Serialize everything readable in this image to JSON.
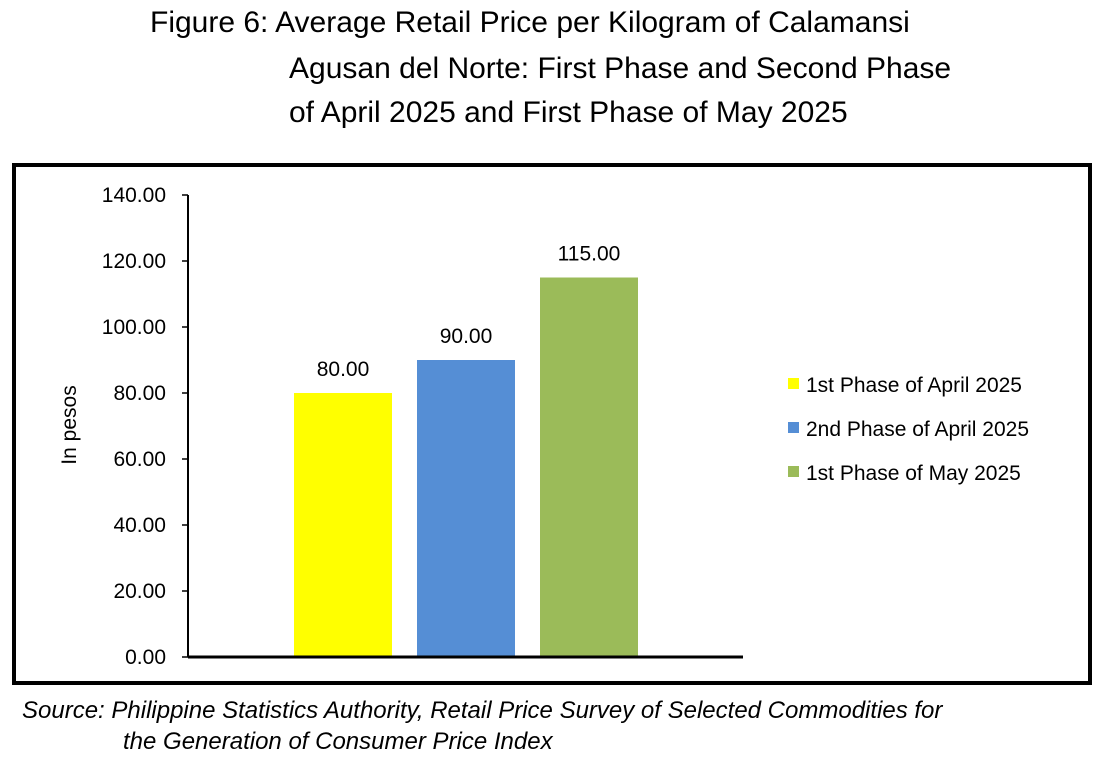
{
  "title_lines": [
    "Figure 6: Average Retail Price per Kilogram of Calamansi",
    "Agusan del Norte: First Phase and Second Phase",
    "of April 2025 and First Phase of May 2025"
  ],
  "source_lines": [
    "Source: Philippine Statistics Authority, Retail Price Survey of Selected Commodities for",
    "the Generation of Consumer Price Index"
  ],
  "chart_data": {
    "type": "bar",
    "ylabel": "In pesos",
    "ylim": [
      0,
      140
    ],
    "yticks": [
      0,
      20,
      40,
      60,
      80,
      100,
      120,
      140
    ],
    "ytick_labels": [
      "0.00",
      "20.00",
      "40.00",
      "60.00",
      "80.00",
      "100.00",
      "120.00",
      "140.00"
    ],
    "grid": false,
    "legend_position": "right",
    "series": [
      {
        "name": "1st Phase of April 2025",
        "value": 80,
        "label": "80.00",
        "color": "#ffff00"
      },
      {
        "name": "2nd Phase of April 2025",
        "value": 90,
        "label": "90.00",
        "color": "#558ed5"
      },
      {
        "name": "1st Phase of May 2025",
        "value": 115,
        "label": "115.00",
        "color": "#9bbb59"
      }
    ]
  }
}
